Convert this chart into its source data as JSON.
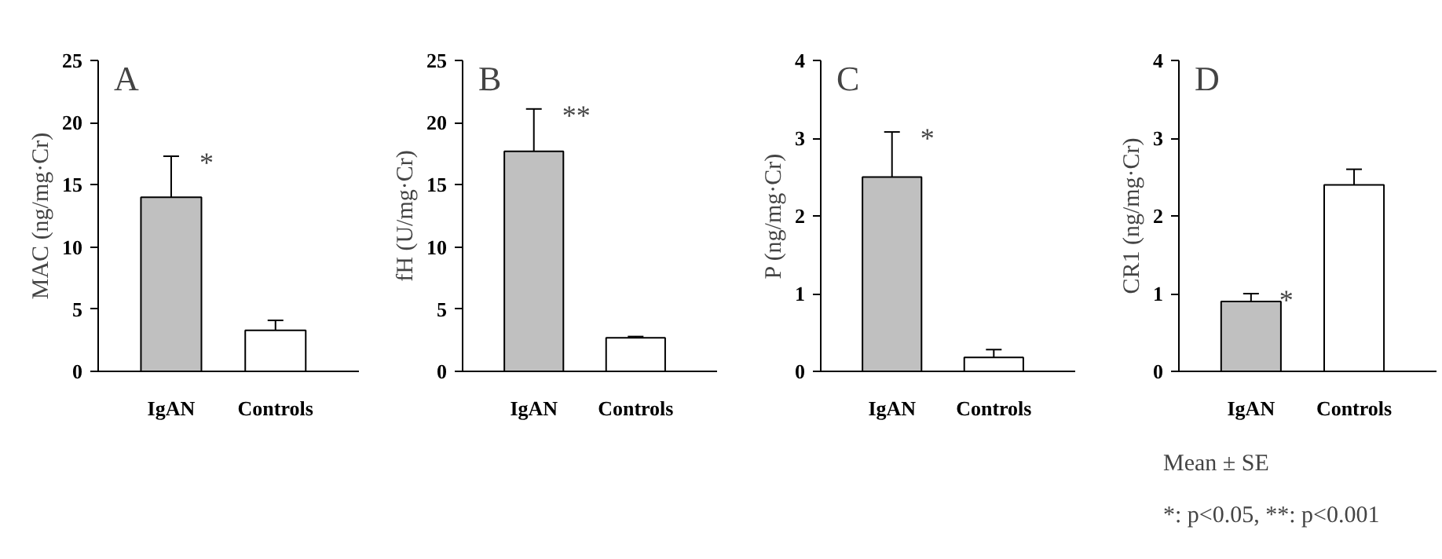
{
  "chart_data": [
    {
      "type": "bar",
      "title": "A",
      "ylabel": "MAC (ng/mg·Cr)",
      "categories": [
        "IgAN",
        "Controls"
      ],
      "values": [
        14,
        3.3
      ],
      "errors": [
        3.3,
        0.8
      ],
      "colors": [
        "#c0c0c0",
        "#ffffff"
      ],
      "ylim": [
        0,
        25
      ],
      "yticks": [
        0,
        5,
        10,
        15,
        20,
        25
      ],
      "grid": false,
      "annotations": [
        {
          "text": "*",
          "x": "IgAN",
          "y": 17.3
        }
      ]
    },
    {
      "type": "bar",
      "title": "B",
      "ylabel": "fH (U/mg·Cr)",
      "categories": [
        "IgAN",
        "Controls"
      ],
      "values": [
        17.7,
        2.7
      ],
      "errors": [
        3.4,
        0.1
      ],
      "colors": [
        "#c0c0c0",
        "#ffffff"
      ],
      "ylim": [
        0,
        25
      ],
      "yticks": [
        0,
        5,
        10,
        15,
        20,
        25
      ],
      "grid": false,
      "annotations": [
        {
          "text": "**",
          "x": "IgAN",
          "y": 21.1
        }
      ]
    },
    {
      "type": "bar",
      "title": "C",
      "ylabel": "P (ng/mg·Cr)",
      "categories": [
        "IgAN",
        "Controls"
      ],
      "values": [
        2.5,
        0.18
      ],
      "errors": [
        0.58,
        0.1
      ],
      "colors": [
        "#c0c0c0",
        "#ffffff"
      ],
      "ylim": [
        0,
        4
      ],
      "yticks": [
        0,
        1,
        2,
        3,
        4
      ],
      "grid": false,
      "annotations": [
        {
          "text": "*",
          "x": "IgAN",
          "y": 3.08
        }
      ]
    },
    {
      "type": "bar",
      "title": "D",
      "ylabel": "CR1 (ng/mg·Cr)",
      "categories": [
        "IgAN",
        "Controls"
      ],
      "values": [
        0.9,
        2.4
      ],
      "errors": [
        0.1,
        0.2
      ],
      "colors": [
        "#c0c0c0",
        "#ffffff"
      ],
      "ylim": [
        0,
        4
      ],
      "yticks": [
        0,
        1,
        2,
        3,
        4
      ],
      "grid": false,
      "annotations": [
        {
          "text": "*",
          "x": "IgAN",
          "y": 1.0
        },
        "Mean ± SE",
        "*: p<0.05, **: p<0.001"
      ]
    }
  ]
}
